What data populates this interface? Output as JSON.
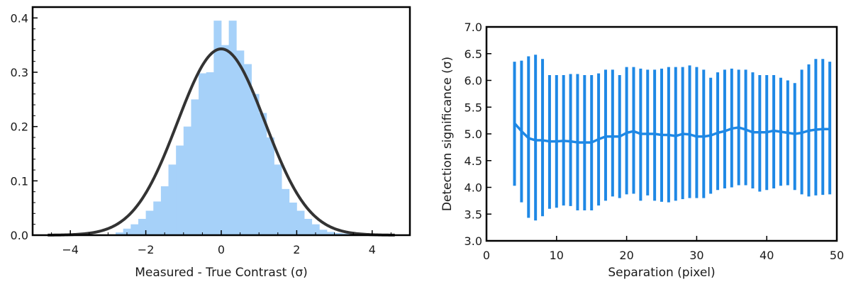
{
  "chart_data": [
    {
      "type": "bar",
      "subtype": "histogram-with-curve",
      "title": "",
      "xlabel": "Measured - True Contrast (σ)",
      "ylabel": "",
      "xlim": [
        -5,
        5
      ],
      "ylim": [
        0,
        0.42
      ],
      "xticks": [
        -4,
        -2,
        0,
        2,
        4
      ],
      "xtick_labels": [
        "−4",
        "−2",
        "0",
        "2",
        "4"
      ],
      "yticks": [
        0.0,
        0.1,
        0.2,
        0.3,
        0.4
      ],
      "ytick_labels": [
        "0.0",
        "0.1",
        "0.2",
        "0.3",
        "0.4"
      ],
      "bin_width": 0.2,
      "bins_start": [
        -2.8,
        -2.6,
        -2.4,
        -2.2,
        -2.0,
        -1.8,
        -1.6,
        -1.4,
        -1.2,
        -1.0,
        -0.8,
        -0.6,
        -0.4,
        -0.2,
        0.0,
        0.2,
        0.4,
        0.6,
        0.8,
        1.0,
        1.2,
        1.4,
        1.6,
        1.8,
        2.0,
        2.2,
        2.4,
        2.6,
        2.8,
        3.0,
        3.2,
        3.4,
        3.6,
        3.8
      ],
      "values": [
        0.005,
        0.012,
        0.02,
        0.03,
        0.045,
        0.062,
        0.09,
        0.13,
        0.165,
        0.2,
        0.25,
        0.298,
        0.3,
        0.395,
        0.35,
        0.395,
        0.34,
        0.315,
        0.26,
        0.225,
        0.18,
        0.13,
        0.085,
        0.06,
        0.045,
        0.03,
        0.02,
        0.01,
        0.006,
        0.004,
        0.003,
        0.002,
        0.002,
        0.001
      ],
      "bar_color": "#a6d1f9",
      "curve": {
        "name": "Gaussian",
        "mean": 0.0,
        "sigma": 1.16,
        "peak": 0.343,
        "color": "#333333"
      }
    },
    {
      "type": "errorbar",
      "title": "",
      "xlabel": "Separation (pixel)",
      "ylabel": "Detection significance (σ)",
      "xlim": [
        0,
        50
      ],
      "ylim": [
        3.0,
        7.0
      ],
      "xticks": [
        0,
        10,
        20,
        30,
        40,
        50
      ],
      "xtick_labels": [
        "0",
        "10",
        "20",
        "30",
        "40",
        "50"
      ],
      "yticks": [
        3.0,
        3.5,
        4.0,
        4.5,
        5.0,
        5.5,
        6.0,
        6.5,
        7.0
      ],
      "ytick_labels": [
        "3.0",
        "3.5",
        "4.0",
        "4.5",
        "5.0",
        "5.5",
        "6.0",
        "6.5",
        "7.0"
      ],
      "color": "#1e88e5",
      "x": [
        4,
        5,
        6,
        7,
        8,
        9,
        10,
        11,
        12,
        13,
        14,
        15,
        16,
        17,
        18,
        19,
        20,
        21,
        22,
        23,
        24,
        25,
        26,
        27,
        28,
        29,
        30,
        31,
        32,
        33,
        34,
        35,
        36,
        37,
        38,
        39,
        40,
        41,
        42,
        43,
        44,
        45,
        46,
        47,
        48,
        49
      ],
      "y": [
        5.2,
        5.05,
        4.92,
        4.88,
        4.88,
        4.86,
        4.86,
        4.87,
        4.86,
        4.84,
        4.84,
        4.84,
        4.9,
        4.95,
        4.95,
        4.95,
        5.02,
        5.05,
        5.0,
        5.0,
        5.0,
        4.98,
        4.98,
        4.96,
        5.0,
        4.99,
        4.95,
        4.95,
        4.97,
        5.02,
        5.05,
        5.1,
        5.12,
        5.08,
        5.03,
        5.03,
        5.03,
        5.06,
        5.04,
        5.02,
        5.0,
        5.02,
        5.06,
        5.08,
        5.09,
        5.09
      ],
      "yerr_low": [
        4.03,
        3.72,
        3.43,
        3.38,
        3.46,
        3.6,
        3.62,
        3.66,
        3.65,
        3.57,
        3.57,
        3.57,
        3.66,
        3.75,
        3.83,
        3.8,
        3.87,
        3.88,
        3.75,
        3.85,
        3.75,
        3.73,
        3.72,
        3.75,
        3.78,
        3.8,
        3.8,
        3.8,
        3.88,
        3.95,
        3.98,
        4.0,
        4.04,
        4.04,
        3.98,
        3.92,
        3.95,
        3.98,
        4.03,
        4.04,
        3.95,
        3.87,
        3.83,
        3.85,
        3.86,
        3.87
      ],
      "yerr_high": [
        6.35,
        6.37,
        6.45,
        6.48,
        6.4,
        6.1,
        6.1,
        6.1,
        6.12,
        6.12,
        6.1,
        6.1,
        6.13,
        6.2,
        6.2,
        6.1,
        6.25,
        6.25,
        6.22,
        6.2,
        6.2,
        6.22,
        6.25,
        6.25,
        6.25,
        6.28,
        6.25,
        6.2,
        6.05,
        6.15,
        6.2,
        6.22,
        6.2,
        6.2,
        6.15,
        6.1,
        6.1,
        6.1,
        6.05,
        6.0,
        5.95,
        6.2,
        6.3,
        6.4,
        6.4,
        6.35
      ]
    }
  ]
}
